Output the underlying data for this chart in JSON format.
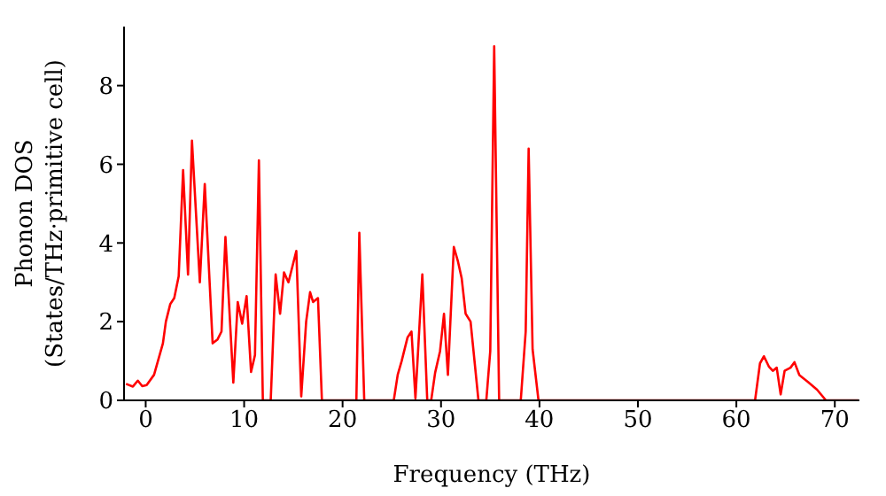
{
  "chart_data": {
    "type": "line",
    "xlabel": "Frequency (THz)",
    "ylabel": "Phonon DOS\n(States/THz·primitive cell)",
    "xlim": [
      -2.2,
      72.5
    ],
    "ylim": [
      0,
      9.5
    ],
    "xticks": [
      0,
      10,
      20,
      30,
      40,
      50,
      60,
      70
    ],
    "yticks": [
      0,
      2,
      4,
      6,
      8
    ],
    "grid": false,
    "legend": false,
    "marker": "none",
    "line_style": "solid",
    "series": [
      {
        "color": "#ff0000",
        "x": [
          -2.0,
          -1.3,
          -0.8,
          -0.35,
          0.1,
          0.85,
          1.75,
          2.05,
          2.5,
          2.9,
          3.35,
          3.8,
          4.3,
          4.7,
          5.5,
          6.0,
          6.8,
          7.3,
          7.7,
          8.1,
          8.9,
          9.35,
          9.8,
          10.25,
          10.7,
          11.1,
          11.5,
          11.9,
          12.7,
          13.2,
          13.65,
          14.05,
          14.5,
          15.3,
          15.8,
          16.3,
          16.7,
          17.0,
          17.5,
          17.9,
          21.4,
          21.7,
          22.2,
          25.2,
          25.6,
          26.0,
          26.6,
          27.0,
          27.4,
          28.1,
          28.6,
          29.0,
          29.4,
          29.9,
          30.3,
          30.7,
          31.3,
          31.7,
          32.1,
          32.5,
          33.0,
          33.8,
          34.6,
          35.0,
          35.4,
          35.9,
          38.1,
          38.6,
          38.9,
          39.3,
          39.9,
          61.9,
          62.4,
          62.8,
          63.3,
          63.7,
          64.1,
          64.5,
          64.9,
          65.5,
          65.9,
          66.4,
          67.3,
          68.2,
          69.1,
          72.4
        ],
        "values": [
          0.42,
          0.35,
          0.5,
          0.36,
          0.39,
          0.65,
          1.45,
          2.0,
          2.45,
          2.6,
          3.15,
          5.85,
          3.2,
          6.6,
          3.0,
          5.5,
          1.45,
          1.55,
          1.75,
          4.15,
          0.45,
          2.5,
          1.95,
          2.65,
          0.72,
          1.15,
          6.1,
          0,
          0,
          3.2,
          2.2,
          3.25,
          3.0,
          3.8,
          0.1,
          2.0,
          2.75,
          2.5,
          2.6,
          0,
          0,
          4.26,
          0,
          0,
          0.65,
          1.0,
          1.6,
          1.75,
          0.05,
          3.2,
          0,
          0,
          0.7,
          1.25,
          2.2,
          0.65,
          3.9,
          3.55,
          3.1,
          2.2,
          2.0,
          0,
          0,
          1.25,
          9.0,
          0,
          0,
          1.75,
          6.4,
          1.3,
          0,
          0,
          0.94,
          1.12,
          0.86,
          0.75,
          0.83,
          0.15,
          0.75,
          0.83,
          0.97,
          0.64,
          0.46,
          0.27,
          0,
          0
        ]
      }
    ]
  }
}
